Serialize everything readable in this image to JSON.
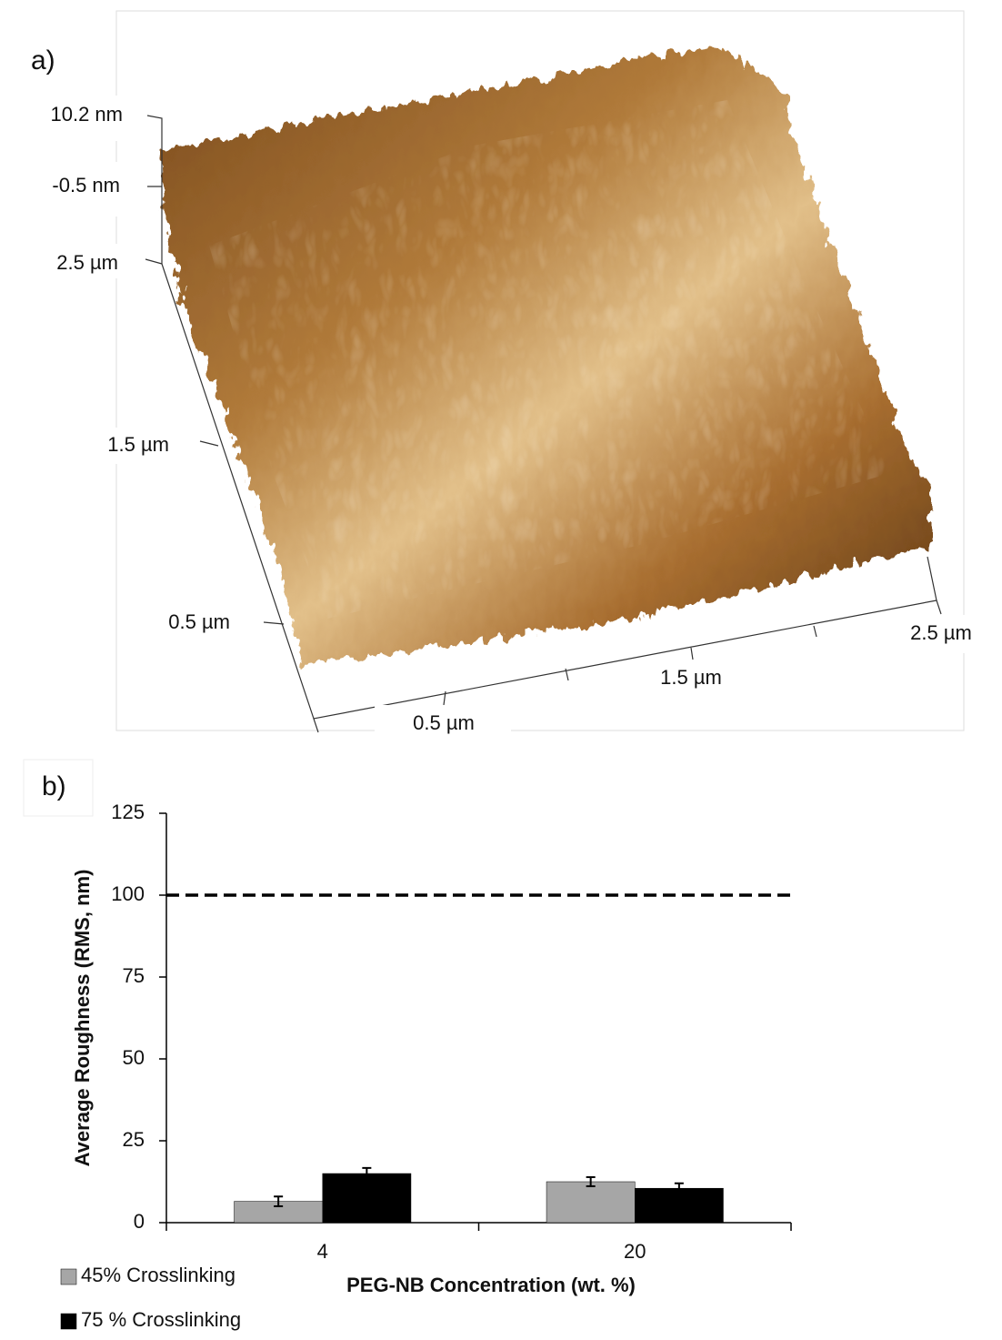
{
  "panel_a": {
    "label": "a)",
    "z_labels": [
      "10.2 nm",
      "-0.5 nm"
    ],
    "y_labels": [
      "2.5 µm",
      "1.5 µm",
      "0.5 µm"
    ],
    "x_labels": [
      "0.5 µm",
      "1.5 µm",
      "2.5 µm"
    ]
  },
  "chart_data": {
    "type": "bar",
    "title": "b)",
    "x_label": "PEG-NB Concentration (wt. %)",
    "y_label": "Average Roughness (RMS, nm)",
    "categories": [
      "4",
      "20"
    ],
    "series": [
      {
        "name": "45% Crosslinking",
        "color": "#a6a6a6",
        "values": [
          6.5,
          12.5
        ],
        "errors": [
          1.5,
          1.4
        ]
      },
      {
        "name": "75 % Crosslinking",
        "color": "#000000",
        "values": [
          15,
          10.5
        ],
        "errors": [
          1.7,
          1.5
        ]
      }
    ],
    "ylim": [
      0,
      125
    ],
    "yticks": [
      0,
      25,
      50,
      75,
      100,
      125
    ],
    "reference_line": {
      "value": 100,
      "style": "dashed"
    },
    "legend": "bottom-left"
  }
}
